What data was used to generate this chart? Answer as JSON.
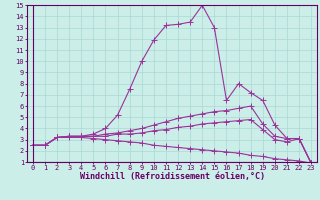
{
  "bg_color": "#cceee8",
  "line_color": "#993399",
  "grid_color": "#aad8d4",
  "xlabel": "Windchill (Refroidissement éolien,°C)",
  "xlim": [
    -0.5,
    23.5
  ],
  "ylim": [
    1,
    15
  ],
  "xticks": [
    0,
    1,
    2,
    3,
    4,
    5,
    6,
    7,
    8,
    9,
    10,
    11,
    12,
    13,
    14,
    15,
    16,
    17,
    18,
    19,
    20,
    21,
    22,
    23
  ],
  "yticks": [
    1,
    2,
    3,
    4,
    5,
    6,
    7,
    8,
    9,
    10,
    11,
    12,
    13,
    14,
    15
  ],
  "line1_x": [
    0,
    1,
    2,
    3,
    4,
    5,
    6,
    7,
    8,
    9,
    10,
    11,
    12,
    13,
    14,
    15,
    16,
    17,
    18,
    19,
    20,
    21,
    22,
    23
  ],
  "line1_y": [
    2.5,
    2.5,
    3.2,
    3.3,
    3.3,
    3.5,
    4.0,
    5.2,
    7.5,
    10.0,
    11.9,
    13.2,
    13.3,
    13.5,
    15.0,
    13.0,
    6.5,
    8.0,
    7.2,
    6.5,
    4.3,
    3.1,
    3.1,
    0.9
  ],
  "line2_x": [
    0,
    1,
    2,
    3,
    4,
    5,
    6,
    7,
    8,
    9,
    10,
    11,
    12,
    13,
    14,
    15,
    16,
    17,
    18,
    19,
    20,
    21,
    22,
    23
  ],
  "line2_y": [
    2.5,
    2.5,
    3.2,
    3.3,
    3.3,
    3.3,
    3.5,
    3.6,
    3.8,
    4.0,
    4.3,
    4.6,
    4.9,
    5.1,
    5.3,
    5.5,
    5.6,
    5.8,
    6.0,
    4.4,
    3.3,
    3.1,
    3.1,
    0.9
  ],
  "line3_x": [
    0,
    1,
    2,
    3,
    4,
    5,
    6,
    7,
    8,
    9,
    10,
    11,
    12,
    13,
    14,
    15,
    16,
    17,
    18,
    19,
    20,
    21,
    22,
    23
  ],
  "line3_y": [
    2.5,
    2.5,
    3.2,
    3.3,
    3.3,
    3.3,
    3.3,
    3.5,
    3.5,
    3.6,
    3.8,
    3.9,
    4.1,
    4.2,
    4.4,
    4.5,
    4.6,
    4.7,
    4.8,
    3.9,
    3.0,
    2.8,
    3.1,
    0.9
  ],
  "line4_x": [
    0,
    1,
    2,
    3,
    4,
    5,
    6,
    7,
    8,
    9,
    10,
    11,
    12,
    13,
    14,
    15,
    16,
    17,
    18,
    19,
    20,
    21,
    22,
    23
  ],
  "line4_y": [
    2.5,
    2.5,
    3.2,
    3.2,
    3.2,
    3.1,
    3.0,
    2.9,
    2.8,
    2.7,
    2.5,
    2.4,
    2.3,
    2.2,
    2.1,
    2.0,
    1.9,
    1.8,
    1.6,
    1.5,
    1.3,
    1.2,
    1.1,
    0.9
  ],
  "tick_fontsize": 5.0,
  "label_fontsize": 6.0,
  "markersize": 2.0,
  "linewidth": 0.8
}
